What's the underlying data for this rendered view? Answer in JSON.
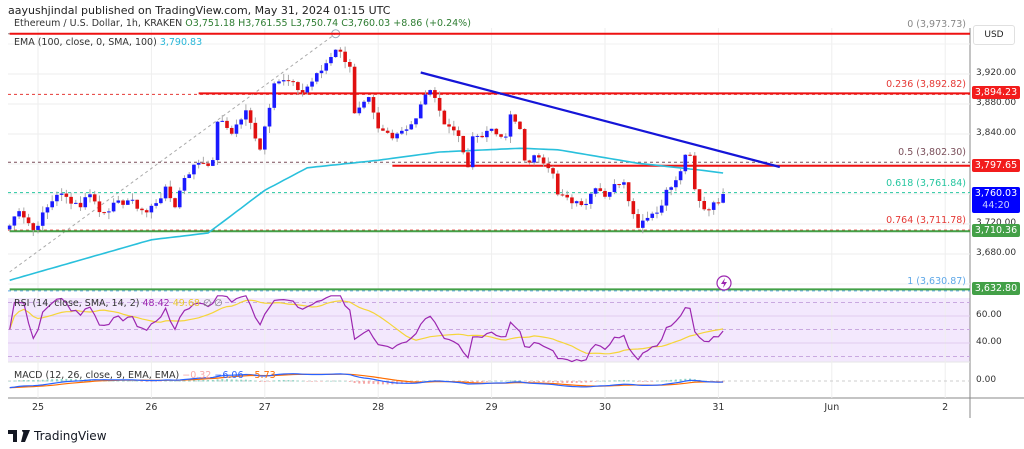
{
  "publisher": "aayushjindal published on TradingView.com, May 31, 2024 01:15 UTC",
  "legend": {
    "symbol": "Ethereum / U.S. Dollar, 1h, KRAKEN",
    "open": "O3,751.18",
    "high": "H3,761.55",
    "low": "L3,750.74",
    "close": "C3,760.03",
    "change": "+8.86 (+0.24%)",
    "ema_label": "EMA (100, close, 0, SMA, 100)",
    "ema_value": "3,790.83",
    "rsi_label": "RSI (14, close, SMA, 14, 2)",
    "rsi_value": "48.42",
    "rsi_ma_value": "49.68",
    "rsi_extra": "∅ ∅",
    "macd_label": "MACD (12, 26, close, 9, EMA, EMA)",
    "macd_hist": "−0.32",
    "macd_value": "−6.06",
    "macd_signal": "−5.73"
  },
  "currency": "USD",
  "colors": {
    "up": "#1a1aff",
    "down": "#e01010",
    "ema": "#29c0dc",
    "trend": "#1515d8",
    "support": "#43a047",
    "resistance": "#ee1111",
    "rsi": "#9c27b0",
    "rsi_ma": "#f5d538",
    "macd": "#2962ff",
    "signal": "#ff6d00"
  },
  "price_axis": {
    "ticks": [
      "3,920.00",
      "3,880.00",
      "3,840.00",
      "3,720.00",
      "3,680.00"
    ],
    "tick_values": [
      3920,
      3880,
      3840,
      3720,
      3680
    ]
  },
  "price_tags": [
    {
      "text": "3,894.23",
      "value": 3894.23,
      "color": "#f21c1c"
    },
    {
      "text": "3,797.65",
      "value": 3797.65,
      "color": "#f21c1c"
    },
    {
      "text": "3,710.36",
      "value": 3710.36,
      "color": "#43a047"
    },
    {
      "text": "3,632.80",
      "value": 3632.8,
      "color": "#43a047"
    }
  ],
  "last_price": {
    "text": "3,760.03",
    "countdown": "44:20",
    "value": 3760.03
  },
  "fib_levels": [
    {
      "text": "0 (3,973.73)",
      "value": 3973.73,
      "color": "#888888"
    },
    {
      "text": "0.236 (3,892.82)",
      "value": 3892.82,
      "color": "#e53935"
    },
    {
      "text": "0.5 (3,802.30)",
      "value": 3802.3,
      "color": "#7a4f5a"
    },
    {
      "text": "0.618 (3,761.84)",
      "value": 3761.84,
      "color": "#26c6a0"
    },
    {
      "text": "0.764 (3,711.78)",
      "value": 3711.78,
      "color": "#e53935"
    },
    {
      "text": "1 (3,630.87)",
      "value": 3630.87,
      "color": "#5fa8e8"
    }
  ],
  "rsi_axis": [
    "60.00",
    "40.00"
  ],
  "macd_axis": [
    "0.00"
  ],
  "time_axis": [
    {
      "label": "25",
      "hour": 0
    },
    {
      "label": "26",
      "hour": 24
    },
    {
      "label": "27",
      "hour": 48
    },
    {
      "label": "28",
      "hour": 72
    },
    {
      "label": "29",
      "hour": 96
    },
    {
      "label": "30",
      "hour": 120
    },
    {
      "label": "31",
      "hour": 144
    },
    {
      "label": "Jun",
      "hour": 168
    },
    {
      "label": "2",
      "hour": 192
    }
  ],
  "brand": "TradingView",
  "chart_data": {
    "type": "candlestick",
    "title": "Ethereum / U.S. Dollar, 1h, KRAKEN",
    "x_unit": "hours since May 25 00:00 UTC",
    "close_keypoints": [
      [
        -6,
        3718
      ],
      [
        -4,
        3741
      ],
      [
        -1,
        3712
      ],
      [
        4,
        3761
      ],
      [
        9,
        3745
      ],
      [
        11,
        3763
      ],
      [
        13,
        3736
      ],
      [
        19,
        3752
      ],
      [
        23,
        3735
      ],
      [
        27,
        3765
      ],
      [
        29,
        3745
      ],
      [
        31,
        3783
      ],
      [
        34,
        3803
      ],
      [
        37,
        3801
      ],
      [
        38,
        3859
      ],
      [
        41,
        3843
      ],
      [
        44,
        3869
      ],
      [
        47,
        3822
      ],
      [
        49,
        3879
      ],
      [
        50,
        3912
      ],
      [
        53,
        3909
      ],
      [
        56,
        3896
      ],
      [
        60,
        3925
      ],
      [
        63,
        3955
      ],
      [
        66,
        3932
      ],
      [
        67,
        3865
      ],
      [
        70,
        3885
      ],
      [
        72,
        3845
      ],
      [
        75,
        3839
      ],
      [
        78,
        3849
      ],
      [
        80,
        3859
      ],
      [
        82,
        3895
      ],
      [
        84,
        3893
      ],
      [
        86,
        3852
      ],
      [
        88,
        3849
      ],
      [
        90,
        3816
      ],
      [
        91,
        3792
      ],
      [
        92,
        3836
      ],
      [
        96,
        3843
      ],
      [
        99,
        3840
      ],
      [
        100,
        3864
      ],
      [
        102,
        3845
      ],
      [
        103,
        3801
      ],
      [
        106,
        3812
      ],
      [
        109,
        3792
      ],
      [
        110,
        3759
      ],
      [
        112,
        3752
      ],
      [
        116,
        3749
      ],
      [
        118,
        3772
      ],
      [
        120,
        3759
      ],
      [
        123,
        3776
      ],
      [
        124,
        3779
      ],
      [
        126,
        3732
      ],
      [
        127,
        3719
      ],
      [
        129,
        3732
      ],
      [
        131,
        3736
      ],
      [
        133,
        3763
      ],
      [
        135,
        3776
      ],
      [
        137,
        3808
      ],
      [
        138,
        3809
      ],
      [
        139,
        3765
      ],
      [
        141,
        3741
      ],
      [
        143,
        3745
      ],
      [
        145,
        3760
      ]
    ],
    "ema100_keypoints": [
      [
        -6,
        3645
      ],
      [
        24,
        3699
      ],
      [
        36,
        3708
      ],
      [
        48,
        3765
      ],
      [
        57,
        3795
      ],
      [
        72,
        3805
      ],
      [
        85,
        3816
      ],
      [
        102,
        3821
      ],
      [
        110,
        3819
      ],
      [
        127,
        3801
      ],
      [
        140,
        3792
      ],
      [
        145,
        3788
      ]
    ],
    "horizontal_lines": [
      {
        "value": 3973.73,
        "color": "#ee1111",
        "from_hour": -6
      },
      {
        "value": 3894.23,
        "color": "#ee1111",
        "from_hour": 34
      },
      {
        "value": 3797.65,
        "color": "#ee1111",
        "from_hour": 75
      },
      {
        "value": 3710.36,
        "color": "#43a047",
        "from_hour": -6
      },
      {
        "value": 3632.8,
        "color": "#43a047",
        "from_hour": -6
      }
    ],
    "trendline": [
      [
        81,
        3922
      ],
      [
        157,
        3796
      ]
    ],
    "fib_anchor": [
      [
        -6,
        3656
      ],
      [
        63,
        3973.73
      ]
    ],
    "ylim": [
      3610,
      3990
    ],
    "rsi_levels": [
      70,
      60,
      50,
      40,
      30
    ]
  }
}
